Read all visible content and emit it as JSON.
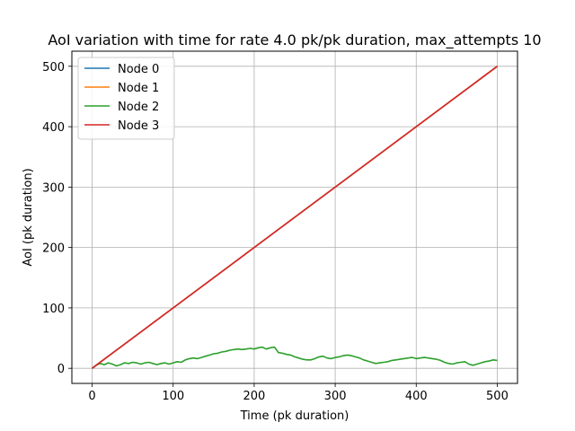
{
  "chart_data": {
    "type": "line",
    "title": "AoI variation with time for rate 4.0 pk/pk duration, max_attempts 10",
    "xlabel": "Time (pk duration)",
    "ylabel": "AoI (pk duration)",
    "xlim": [
      -25,
      525
    ],
    "ylim": [
      -25,
      525
    ],
    "xticks": [
      0,
      100,
      200,
      300,
      400,
      500
    ],
    "yticks": [
      0,
      100,
      200,
      300,
      400,
      500
    ],
    "grid": true,
    "legend_position": "top-left",
    "series": [
      {
        "name": "Node 0",
        "color": "#1f77b4",
        "points": [
          [
            0,
            0
          ],
          [
            500,
            500
          ]
        ]
      },
      {
        "name": "Node 1",
        "color": "#ff7f0e",
        "points": [
          [
            0,
            0
          ],
          [
            500,
            500
          ]
        ]
      },
      {
        "name": "Node 2",
        "color": "#2ca02c",
        "points": [
          [
            0,
            0
          ],
          [
            5,
            5
          ],
          [
            10,
            8
          ],
          [
            15,
            6
          ],
          [
            20,
            9
          ],
          [
            25,
            7
          ],
          [
            30,
            4
          ],
          [
            35,
            6
          ],
          [
            40,
            9
          ],
          [
            45,
            8
          ],
          [
            50,
            10
          ],
          [
            55,
            9
          ],
          [
            60,
            7
          ],
          [
            65,
            9
          ],
          [
            70,
            10
          ],
          [
            75,
            8
          ],
          [
            80,
            6
          ],
          [
            85,
            8
          ],
          [
            90,
            9
          ],
          [
            95,
            7
          ],
          [
            100,
            9
          ],
          [
            105,
            11
          ],
          [
            110,
            10
          ],
          [
            115,
            14
          ],
          [
            120,
            16
          ],
          [
            125,
            17
          ],
          [
            130,
            16
          ],
          [
            135,
            18
          ],
          [
            140,
            20
          ],
          [
            145,
            22
          ],
          [
            150,
            24
          ],
          [
            155,
            25
          ],
          [
            160,
            27
          ],
          [
            165,
            28
          ],
          [
            170,
            30
          ],
          [
            175,
            31
          ],
          [
            180,
            32
          ],
          [
            185,
            31
          ],
          [
            190,
            32
          ],
          [
            195,
            33
          ],
          [
            200,
            32
          ],
          [
            205,
            34
          ],
          [
            210,
            35
          ],
          [
            215,
            32
          ],
          [
            220,
            34
          ],
          [
            225,
            35
          ],
          [
            230,
            26
          ],
          [
            235,
            25
          ],
          [
            240,
            23
          ],
          [
            245,
            22
          ],
          [
            250,
            19
          ],
          [
            255,
            17
          ],
          [
            260,
            15
          ],
          [
            265,
            14
          ],
          [
            270,
            14
          ],
          [
            275,
            16
          ],
          [
            280,
            19
          ],
          [
            285,
            20
          ],
          [
            290,
            17
          ],
          [
            295,
            16
          ],
          [
            300,
            18
          ],
          [
            305,
            19
          ],
          [
            310,
            21
          ],
          [
            315,
            22
          ],
          [
            320,
            21
          ],
          [
            325,
            19
          ],
          [
            330,
            17
          ],
          [
            335,
            14
          ],
          [
            340,
            12
          ],
          [
            345,
            10
          ],
          [
            350,
            8
          ],
          [
            355,
            9
          ],
          [
            360,
            10
          ],
          [
            365,
            11
          ],
          [
            370,
            13
          ],
          [
            375,
            14
          ],
          [
            380,
            15
          ],
          [
            385,
            16
          ],
          [
            390,
            17
          ],
          [
            395,
            18
          ],
          [
            400,
            16
          ],
          [
            405,
            17
          ],
          [
            410,
            18
          ],
          [
            415,
            17
          ],
          [
            420,
            16
          ],
          [
            425,
            15
          ],
          [
            430,
            13
          ],
          [
            435,
            10
          ],
          [
            440,
            8
          ],
          [
            445,
            7
          ],
          [
            450,
            9
          ],
          [
            455,
            10
          ],
          [
            460,
            11
          ],
          [
            465,
            7
          ],
          [
            470,
            5
          ],
          [
            475,
            7
          ],
          [
            480,
            9
          ],
          [
            485,
            11
          ],
          [
            490,
            12
          ],
          [
            495,
            14
          ],
          [
            500,
            13
          ]
        ]
      },
      {
        "name": "Node 3",
        "color": "#d62728",
        "points": [
          [
            0,
            0
          ],
          [
            500,
            500
          ]
        ]
      }
    ]
  }
}
